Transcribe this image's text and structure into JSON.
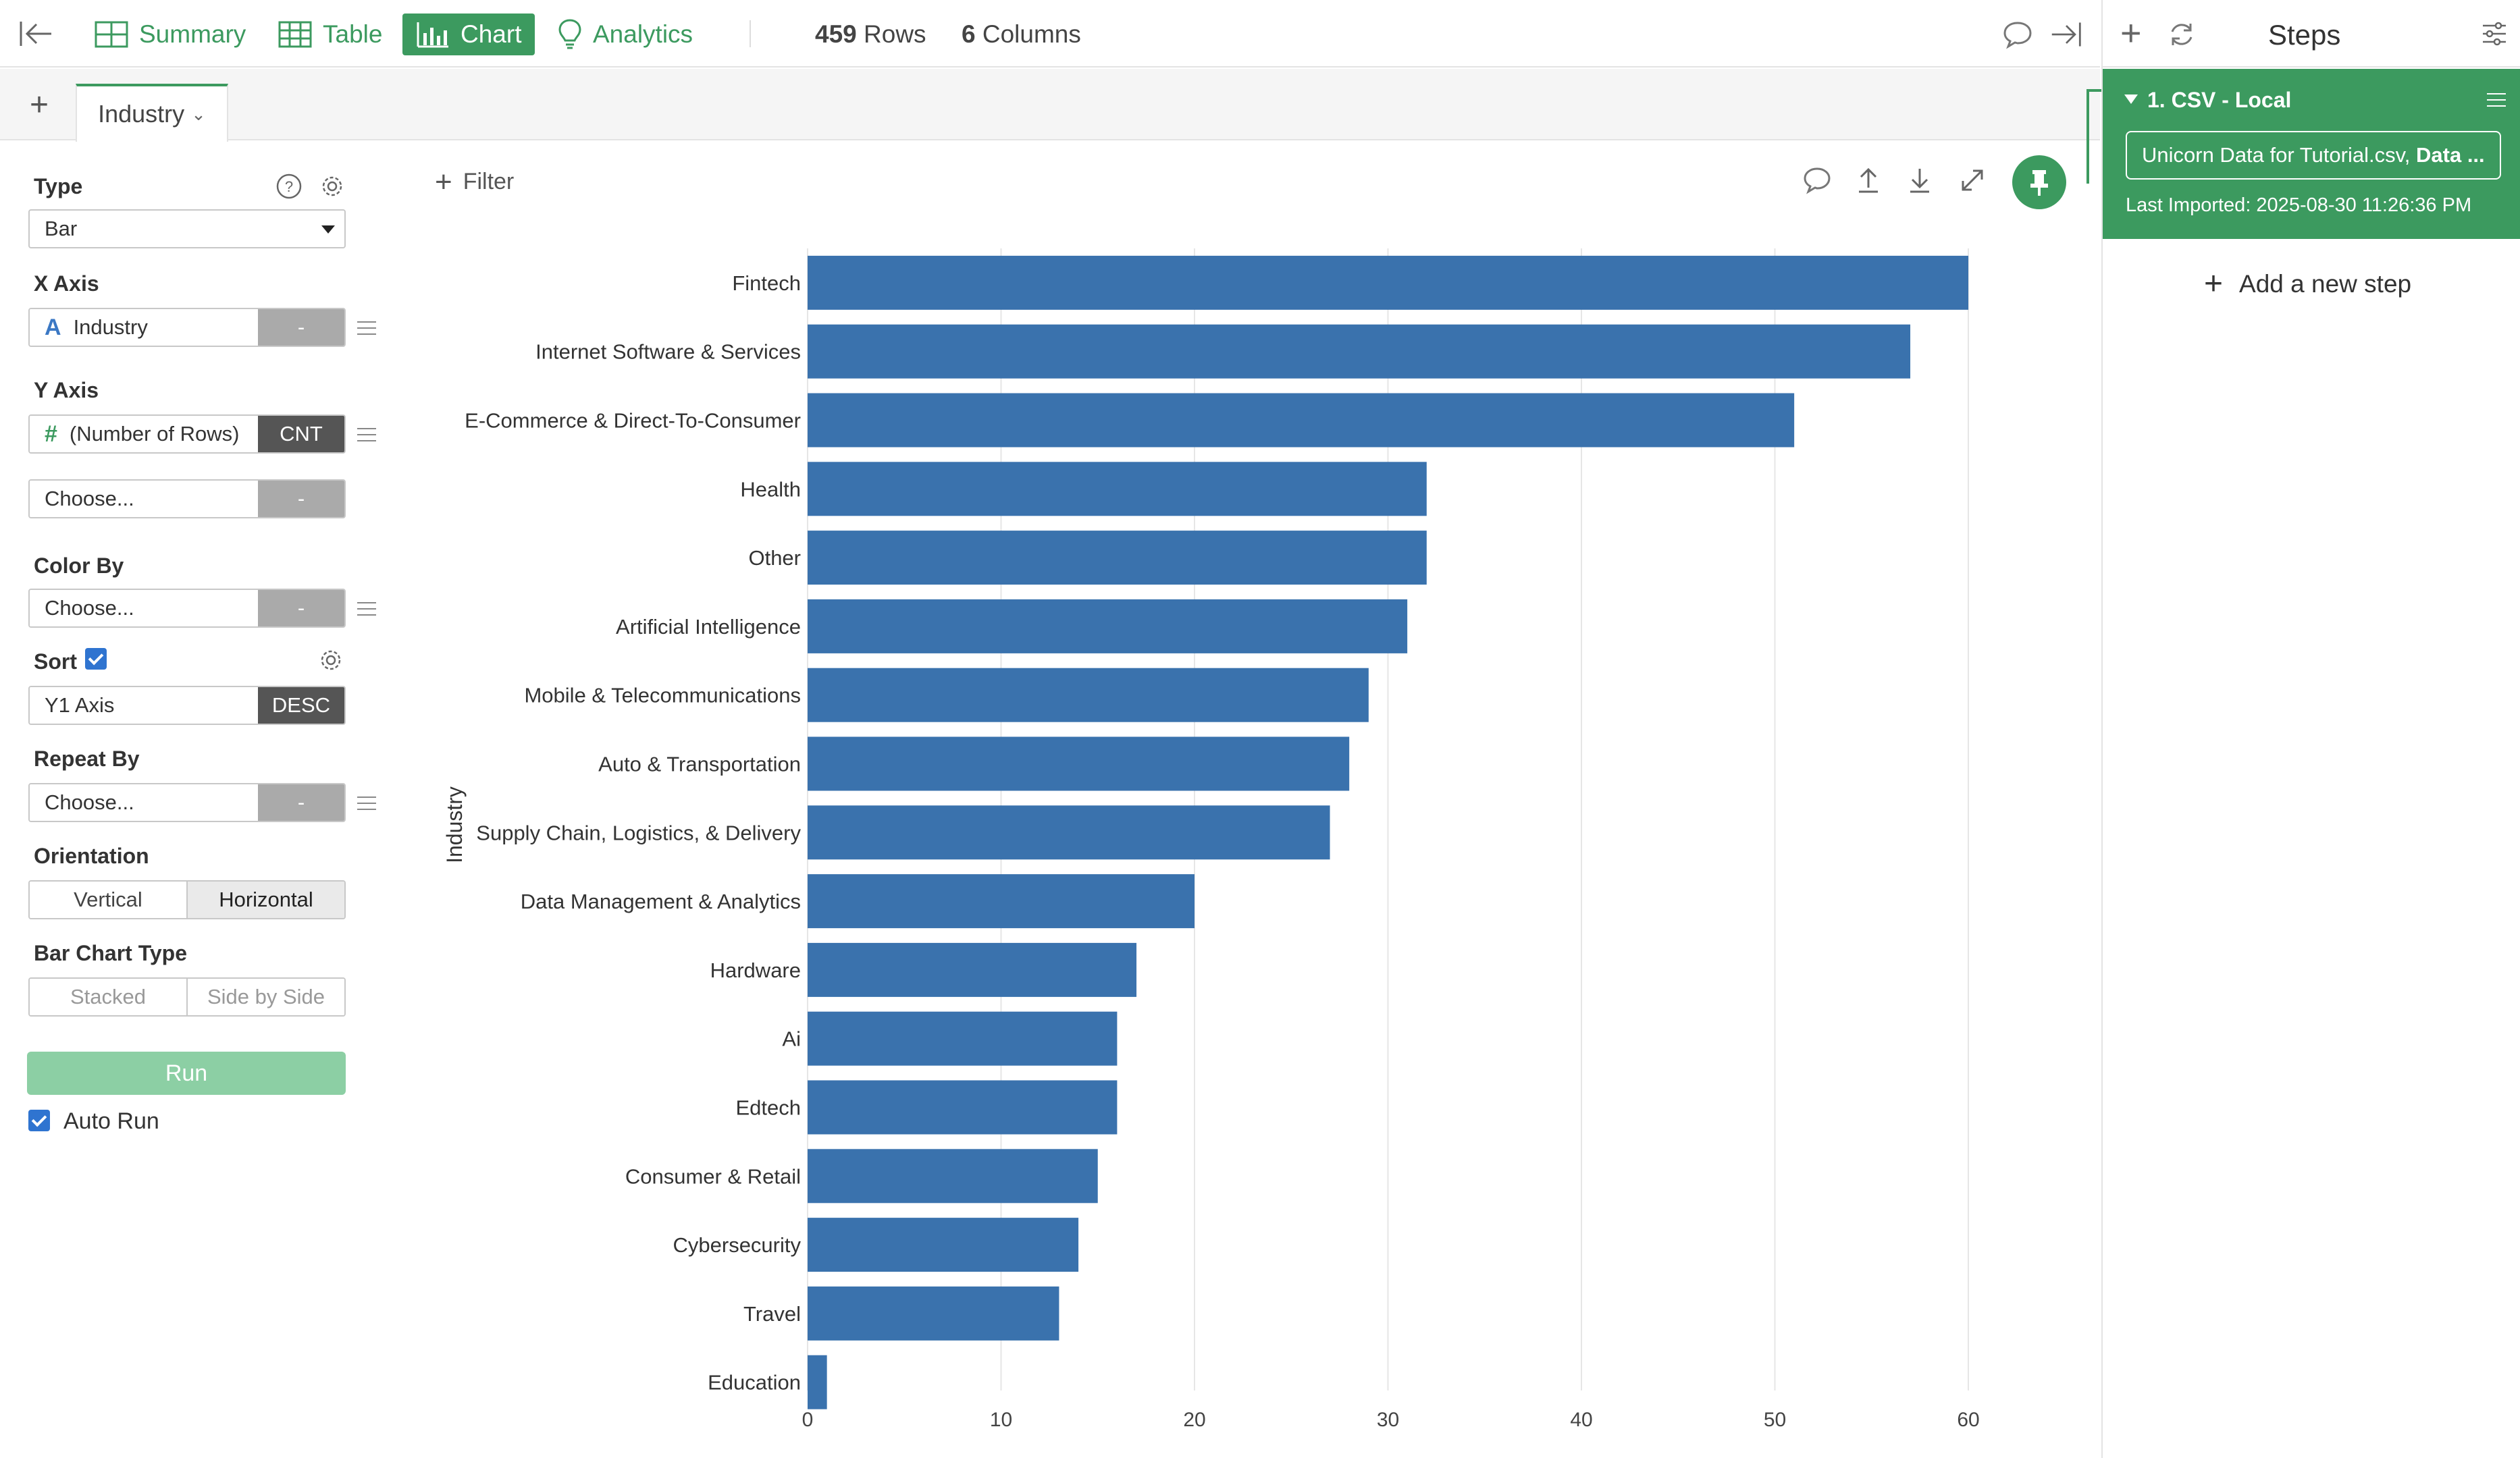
{
  "topbar": {
    "tabs": [
      {
        "label": "Summary",
        "icon": "summary-grid-icon",
        "active": false
      },
      {
        "label": "Table",
        "icon": "table-icon",
        "active": false
      },
      {
        "label": "Chart",
        "icon": "bar-chart-icon",
        "active": true
      },
      {
        "label": "Analytics",
        "icon": "lightbulb-icon",
        "active": false
      }
    ],
    "rows_count": "459",
    "rows_label": "Rows",
    "columns_count": "6",
    "columns_label": "Columns"
  },
  "chart_tab": {
    "label": "Industry"
  },
  "config": {
    "type_label": "Type",
    "type_value": "Bar",
    "x_axis_label": "X Axis",
    "x_axis_field": "Industry",
    "x_axis_type_glyph": "A",
    "x_axis_agg": "-",
    "y_axis_label": "Y Axis",
    "y_axis_field": "(Number of Rows)",
    "y_axis_type_glyph": "#",
    "y_axis_agg": "CNT",
    "y2_placeholder": "Choose...",
    "y2_agg": "-",
    "color_by_label": "Color By",
    "color_by_placeholder": "Choose...",
    "color_by_agg": "-",
    "sort_label": "Sort",
    "sort_checked": true,
    "sort_field": "Y1 Axis",
    "sort_order": "DESC",
    "repeat_by_label": "Repeat By",
    "repeat_by_placeholder": "Choose...",
    "repeat_by_agg": "-",
    "orientation_label": "Orientation",
    "orientation_options": [
      "Vertical",
      "Horizontal"
    ],
    "orientation_selected": "Horizontal",
    "bar_chart_type_label": "Bar Chart Type",
    "bar_chart_type_options": [
      "Stacked",
      "Side by Side"
    ],
    "run_label": "Run",
    "auto_run_label": "Auto Run",
    "auto_run_checked": true
  },
  "chart_toolbar": {
    "filter_label": "Filter"
  },
  "steps": {
    "title": "Steps",
    "step_name": "1. CSV - Local",
    "file_name_prefix": "Unicorn Data for Tutorial.csv, ",
    "file_name_bold": "Data ...",
    "last_imported": "Last Imported: 2025-08-30 11:26:36 PM",
    "add_step_label": "Add a new step"
  },
  "colors": {
    "brand_green": "#3c9a5f",
    "bar_blue": "#3a72ad",
    "run_disabled": "#8ccfa4",
    "checkbox_blue": "#2f74d0"
  },
  "chart_data": {
    "type": "bar",
    "orientation": "horizontal",
    "categories": [
      "Fintech",
      "Internet Software & Services",
      "E-Commerce & Direct-To-Consumer",
      "Health",
      "Other",
      "Artificial Intelligence",
      "Mobile & Telecommunications",
      "Auto & Transportation",
      "Supply Chain, Logistics, & Delivery",
      "Data Management & Analytics",
      "Hardware",
      "Ai",
      "Edtech",
      "Consumer & Retail",
      "Cybersecurity",
      "Travel",
      "Education"
    ],
    "values": [
      60,
      57,
      51,
      32,
      32,
      31,
      29,
      28,
      27,
      20,
      17,
      16,
      16,
      15,
      14,
      13,
      1
    ],
    "ylabel": "Industry",
    "xlabel": "",
    "xlim": [
      0,
      63
    ],
    "xticks": [
      0,
      10,
      20,
      30,
      40,
      50,
      60
    ],
    "grid": "vertical"
  }
}
